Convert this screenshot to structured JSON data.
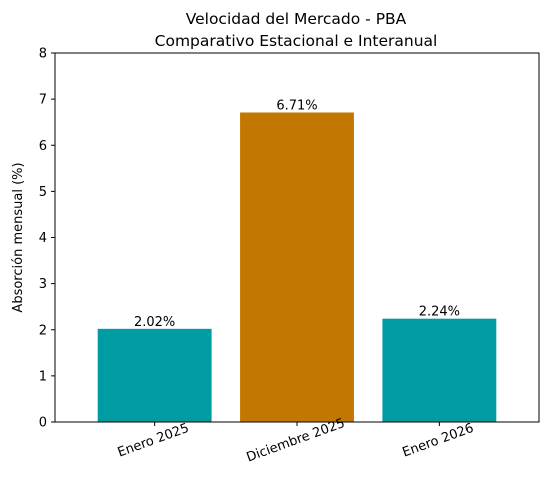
{
  "chart_data": {
    "type": "bar",
    "title_lines": [
      "Velocidad del Mercado - PBA",
      "Comparativo Estacional e Interanual"
    ],
    "xlabel": "",
    "ylabel": "Absorción mensual (%)",
    "ylim": [
      0,
      8
    ],
    "yticks": [
      "0",
      "1",
      "2",
      "3",
      "4",
      "5",
      "6",
      "7",
      "8"
    ],
    "categories": [
      "Enero 2025",
      "Diciembre 2025",
      "Enero 2026"
    ],
    "values": [
      2.02,
      6.71,
      2.24
    ],
    "value_labels": [
      "2.02%",
      "6.71%",
      "2.24%"
    ],
    "colors": [
      "#009ba3",
      "#c27800",
      "#009ba3"
    ],
    "grid": false,
    "legend": "none"
  }
}
